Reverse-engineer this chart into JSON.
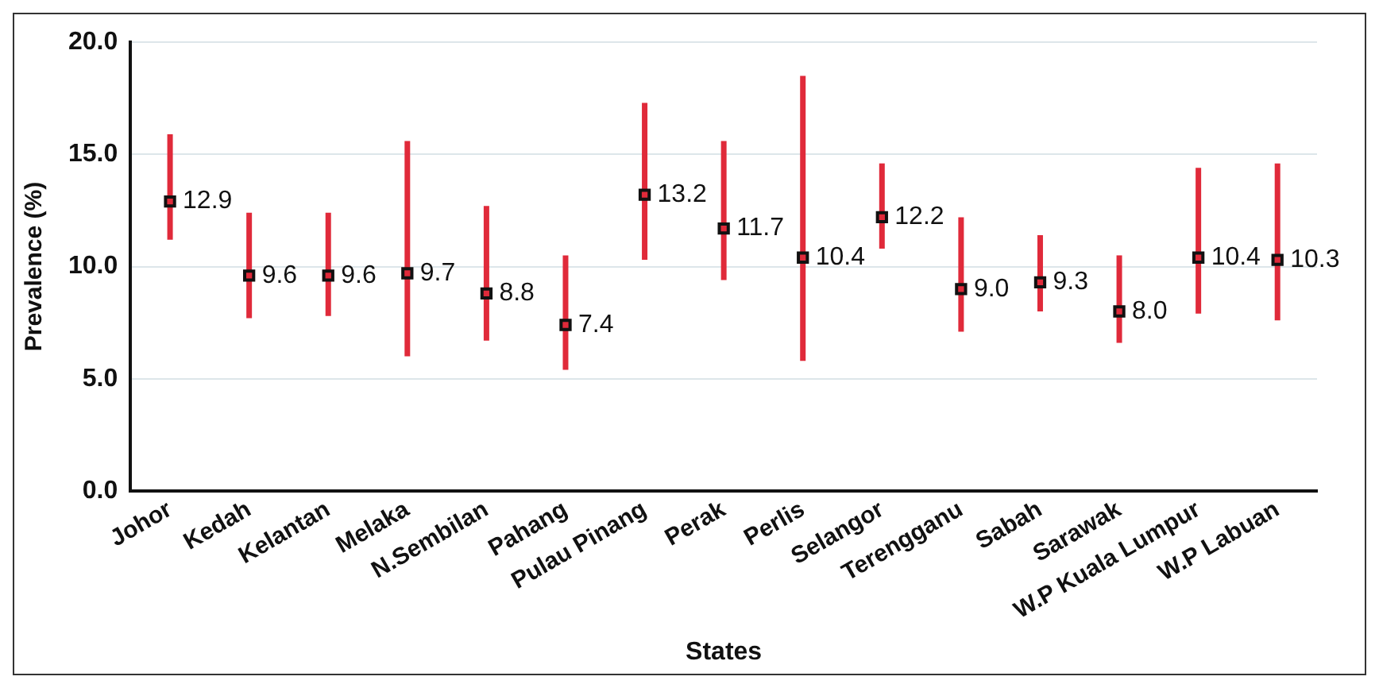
{
  "chart_data": {
    "type": "scatter",
    "xlabel": "States",
    "ylabel": "Prevalence (%)",
    "categories": [
      "Johor",
      "Kedah",
      "Kelantan",
      "Melaka",
      "N.Sembilan",
      "Pahang",
      "Pulau Pinang",
      "Perak",
      "Perlis",
      "Selangor",
      "Terengganu",
      "Sabah",
      "Sarawak",
      "W.P Kuala Lumpur",
      "W.P Labuan"
    ],
    "series": [
      {
        "color": "#e02a3a",
        "values": [
          12.9,
          9.6,
          9.6,
          9.7,
          8.8,
          7.4,
          13.2,
          11.7,
          10.4,
          12.2,
          9.0,
          9.3,
          8.0,
          10.4,
          10.3
        ],
        "value_labels": [
          "12.9",
          "9.6",
          "9.6",
          "9.7",
          "8.8",
          "7.4",
          "13.2",
          "11.7",
          "10.4",
          "12.2",
          "9.0",
          "9.3",
          "8.0",
          "10.4",
          "10.3"
        ],
        "errors": [
          [
            11.2,
            15.9
          ],
          [
            7.7,
            12.4
          ],
          [
            7.8,
            12.4
          ],
          [
            6.0,
            15.6
          ],
          [
            6.7,
            12.7
          ],
          [
            5.4,
            10.5
          ],
          [
            10.3,
            17.3
          ],
          [
            9.4,
            15.6
          ],
          [
            5.8,
            18.5
          ],
          [
            10.8,
            14.6
          ],
          [
            7.1,
            12.2
          ],
          [
            8.0,
            11.4
          ],
          [
            6.6,
            10.5
          ],
          [
            7.9,
            14.4
          ],
          [
            7.6,
            14.6
          ]
        ]
      }
    ],
    "ylim": [
      0,
      20
    ],
    "yticks": [
      {
        "value": 0,
        "label": "0.0"
      },
      {
        "value": 5,
        "label": "5.0"
      },
      {
        "value": 10,
        "label": "10.0"
      },
      {
        "value": 15,
        "label": "15.0"
      },
      {
        "value": 20,
        "label": "20.0"
      }
    ],
    "grid": "y",
    "marker": "square",
    "legend": false
  }
}
